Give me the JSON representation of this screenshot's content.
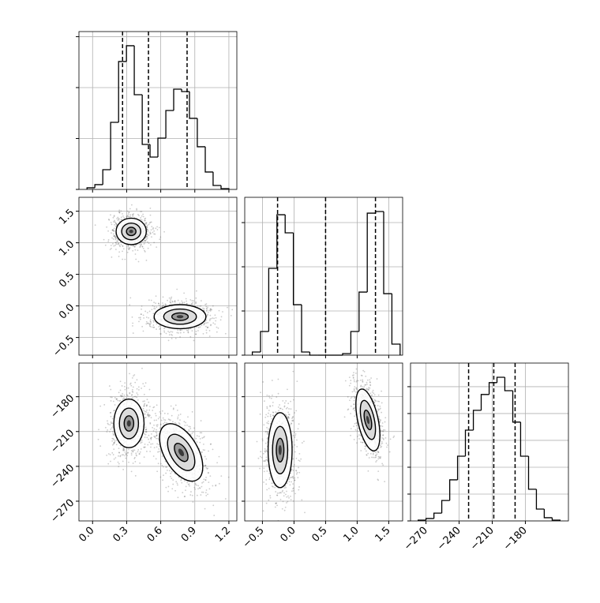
{
  "chart_data": {
    "type": "corner",
    "grid": true,
    "line_color": "#000000",
    "point_color": "#555555",
    "axes": [
      {
        "lim": [
          -0.12,
          1.27
        ],
        "ticks": [
          {
            "value": 0,
            "label": "0.0"
          },
          0.3,
          0.6,
          0.9,
          1.2
        ]
      },
      {
        "lim": [
          -0.78,
          1.72
        ],
        "ticks": [
          {
            "value": -0.5,
            "label": "−0.5"
          },
          {
            "value": 0,
            "label": "0.0"
          },
          0.5,
          {
            "value": 1,
            "label": "1.0"
          },
          1.5
        ]
      },
      {
        "lim": [
          -284,
          -141
        ],
        "ylim": [
          -287,
          -151
        ],
        "ticks": [
          {
            "value": -270,
            "label": "−270"
          },
          {
            "value": -240,
            "label": "−240"
          },
          {
            "value": -210,
            "label": "−210"
          },
          {
            "value": -180,
            "label": "−180"
          }
        ]
      }
    ],
    "histograms": [
      {
        "bins": [
          -0.049,
          0.02,
          0.09,
          0.159,
          0.229,
          0.298,
          0.367,
          0.437,
          0.506,
          0.575,
          0.645,
          0.714,
          0.784,
          0.853,
          0.922,
          0.992,
          1.061,
          1.131,
          1.2
        ],
        "counts": [
          16,
          47,
          194,
          659,
          1256,
          1411,
          930,
          442,
          318,
          504,
          775,
          984,
          961,
          698,
          419,
          171,
          39,
          8
        ],
        "ylim": [
          0,
          1550
        ],
        "yticks": [
          0,
          500,
          1000,
          1500
        ],
        "quantiles": [
          0.264,
          0.492,
          0.832
        ]
      },
      {
        "bins": [
          -0.66,
          -0.53,
          -0.4,
          -0.27,
          -0.14,
          -0.01,
          0.12,
          0.25,
          0.38,
          0.51,
          0.64,
          0.77,
          0.9,
          1.03,
          1.16,
          1.29,
          1.42,
          1.55,
          1.68
        ],
        "counts": [
          36,
          268,
          982,
          1589,
          1384,
          571,
          36,
          0,
          0,
          0,
          0,
          18,
          268,
          714,
          1607,
          1625,
          696,
          125
        ],
        "ylim": [
          0,
          1786
        ],
        "yticks": [
          0,
          500,
          1000,
          1500
        ],
        "quantiles": [
          -0.26,
          0.5,
          1.29
        ]
      },
      {
        "bins": [
          -277.1,
          -270.0,
          -262.8,
          -255.7,
          -248.5,
          -241.4,
          -234.3,
          -227.1,
          -220.0,
          -212.8,
          -205.7,
          -198.6,
          -191.4,
          -184.3,
          -177.1,
          -170.0,
          -162.9,
          -155.7,
          -148.6
        ],
        "counts": [
          3,
          9,
          29,
          76,
          153,
          241,
          338,
          412,
          471,
          515,
          535,
          485,
          368,
          241,
          118,
          44,
          12,
          3
        ],
        "ylim": [
          0,
          588
        ],
        "yticks": [
          0,
          100,
          200,
          300,
          400,
          500
        ],
        "quantiles": [
          -231.4,
          -208.6,
          -189.3
        ]
      }
    ],
    "pairs": [
      {
        "x": 0,
        "y": 1,
        "clusters": [
          {
            "mean": [
              0.34,
              1.18
            ],
            "sd": [
              0.07,
              0.11
            ],
            "corr": 0
          },
          {
            "mean": [
              0.77,
              -0.17
            ],
            "sd": [
              0.12,
              0.1
            ],
            "corr": 0
          }
        ]
      },
      {
        "x": 0,
        "y": 2,
        "clusters": [
          {
            "mean": [
              0.32,
              -203
            ],
            "sd": [
              0.07,
              11
            ],
            "corr": 0
          },
          {
            "mean": [
              0.78,
              -228
            ],
            "sd": [
              0.1,
              13
            ],
            "corr": -0.5
          }
        ]
      },
      {
        "x": 1,
        "y": 2,
        "clusters": [
          {
            "mean": [
              -0.22,
              -226
            ],
            "sd": [
              0.1,
              17
            ],
            "corr": 0
          },
          {
            "mean": [
              1.17,
              -200
            ],
            "sd": [
              0.1,
              14
            ],
            "corr": -0.5
          }
        ]
      }
    ]
  }
}
